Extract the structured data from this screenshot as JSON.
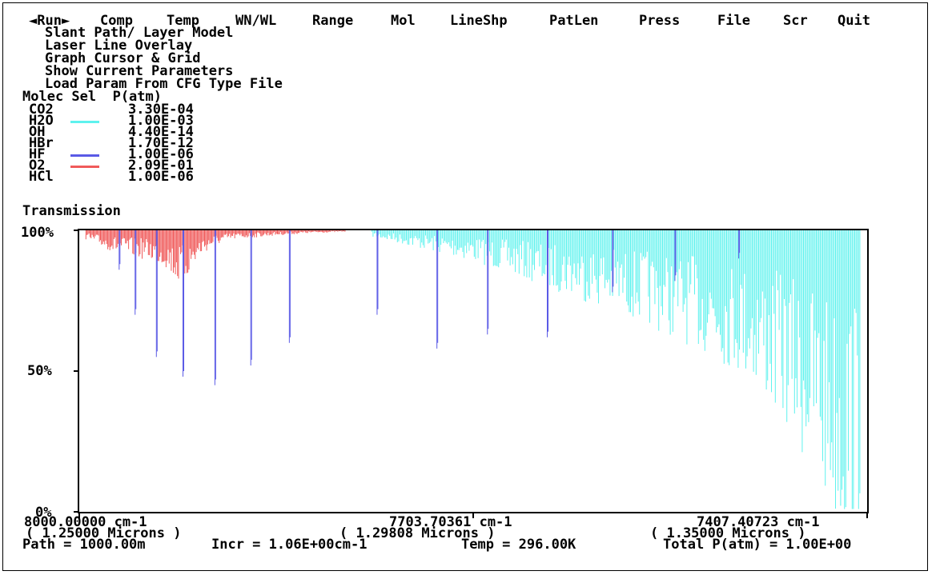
{
  "menu": {
    "items": [
      "◄Run►",
      "Comp",
      "Temp",
      "WN/WL",
      "Range",
      "Mol",
      "LineShp",
      "PatLen",
      "Press",
      "File",
      "Scr",
      "Quit"
    ]
  },
  "submenu": {
    "items": [
      "Slant Path/ Layer Model",
      "Laser Line Overlay",
      "Graph Cursor & Grid",
      "Show Current Parameters",
      "Load Param From CFG Type File"
    ]
  },
  "molecules": {
    "header": "Molec Sel  P(atm)",
    "rows": [
      {
        "name": "CO2",
        "sel_color": "",
        "pressure": "3.30E-04"
      },
      {
        "name": "H2O",
        "sel_color": "#5ef2ee",
        "pressure": "1.00E-03"
      },
      {
        "name": "OH",
        "sel_color": "",
        "pressure": "4.40E-14"
      },
      {
        "name": "HBr",
        "sel_color": "",
        "pressure": "1.70E-12"
      },
      {
        "name": "HF",
        "sel_color": "#5a5ae6",
        "pressure": "1.00E-06"
      },
      {
        "name": "O2",
        "sel_color": "#f05a5a",
        "pressure": "2.09E-01"
      },
      {
        "name": "HCl",
        "sel_color": "",
        "pressure": "1.00E-06"
      }
    ]
  },
  "plot": {
    "ylabel": "Transmission",
    "y_ticks": [
      "100%",
      "50%",
      "0%"
    ],
    "x_labels": [
      {
        "wn": "8000.00000 cm-1",
        "wl": "( 1.25000 Microns )"
      },
      {
        "wn": "7703.70361 cm-1",
        "wl": "( 1.29808 Microns )"
      },
      {
        "wn": "7407.40723 cm-1",
        "wl": "( 1.35000 Microns )"
      }
    ]
  },
  "status": {
    "path": "Path = 1000.00m",
    "incr": "Incr = 1.06E+00cm-1",
    "temp": "Temp = 296.00K",
    "total": "Total P(atm) = 1.00E+00"
  },
  "chart_data": {
    "type": "line",
    "title": "",
    "xlabel": "",
    "ylabel": "Transmission",
    "xlim": [
      8000.0,
      7407.40723
    ],
    "ylim": [
      0,
      100
    ],
    "grid": false,
    "series": [
      {
        "name": "HF",
        "color": "#5a5ae6",
        "lines": [
          {
            "x": 7970,
            "y": 86
          },
          {
            "x": 7958,
            "y": 70
          },
          {
            "x": 7942,
            "y": 55
          },
          {
            "x": 7922,
            "y": 48
          },
          {
            "x": 7898,
            "y": 45
          },
          {
            "x": 7871,
            "y": 52
          },
          {
            "x": 7842,
            "y": 60
          },
          {
            "x": 7776,
            "y": 70
          },
          {
            "x": 7731,
            "y": 58
          },
          {
            "x": 7693,
            "y": 63
          },
          {
            "x": 7648,
            "y": 62
          },
          {
            "x": 7599,
            "y": 78
          },
          {
            "x": 7552,
            "y": 82
          },
          {
            "x": 7504,
            "y": 90
          }
        ]
      },
      {
        "name": "O2",
        "color": "#f05a5a",
        "band": [
          {
            "x": 7995,
            "y": 97
          },
          {
            "x": 7985,
            "y": 95
          },
          {
            "x": 7975,
            "y": 93
          },
          {
            "x": 7965,
            "y": 92
          },
          {
            "x": 7955,
            "y": 91
          },
          {
            "x": 7945,
            "y": 90
          },
          {
            "x": 7935,
            "y": 88
          },
          {
            "x": 7925,
            "y": 82
          },
          {
            "x": 7918,
            "y": 85
          },
          {
            "x": 7908,
            "y": 92
          },
          {
            "x": 7898,
            "y": 95
          },
          {
            "x": 7885,
            "y": 97
          },
          {
            "x": 7860,
            "y": 98
          },
          {
            "x": 7830,
            "y": 99
          },
          {
            "x": 7800,
            "y": 99.5
          }
        ]
      },
      {
        "name": "H2O",
        "color": "#5ef2ee",
        "band": [
          {
            "x": 7780,
            "y": 98
          },
          {
            "x": 7740,
            "y": 94
          },
          {
            "x": 7700,
            "y": 90
          },
          {
            "x": 7660,
            "y": 84
          },
          {
            "x": 7620,
            "y": 78
          },
          {
            "x": 7580,
            "y": 72
          },
          {
            "x": 7540,
            "y": 64
          },
          {
            "x": 7500,
            "y": 55
          },
          {
            "x": 7470,
            "y": 40
          },
          {
            "x": 7445,
            "y": 20
          },
          {
            "x": 7425,
            "y": 3
          },
          {
            "x": 7412,
            "y": 10
          }
        ]
      }
    ]
  }
}
